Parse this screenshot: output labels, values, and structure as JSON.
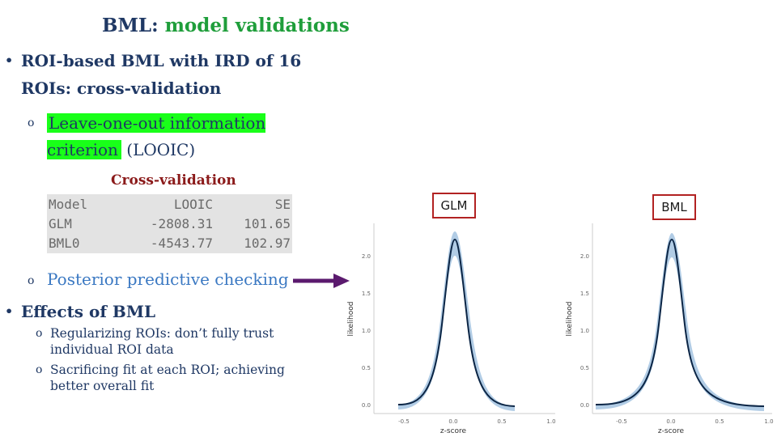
{
  "title": {
    "main": "BML:",
    "accent": "model validations"
  },
  "bullets": {
    "b1": "ROI-based BML with IRD of 16 ROIs: cross-validation",
    "looic_highlight": "Leave-one-out information criterion",
    "looic_rest": " (LOOIC)",
    "posterior": "Posterior predictive checking",
    "b2": "Effects of BML",
    "reg": "Regularizing ROIs: don’t fully trust individual ROI data",
    "sac": "Sacrificing fit at each ROI; achieving better overall fit",
    "bullet_symbol": "•",
    "sub_symbol": "o"
  },
  "table": {
    "caption": "Cross-validation",
    "headers": [
      "Model",
      "LOOIC",
      "SE"
    ],
    "rows": [
      [
        "GLM",
        "-2808.31",
        "101.65"
      ],
      [
        "BML0",
        "-4543.77",
        "102.97"
      ]
    ]
  },
  "labels": {
    "glm": "GLM",
    "bml": "BML"
  },
  "plots": {
    "ylabel": "likelihood",
    "xlabel": "z-score",
    "yticks": [
      "0.0",
      "0.5",
      "1.0",
      "1.5",
      "2.0"
    ],
    "xticks": [
      "-0.5",
      "0.0",
      "0.5",
      "1.0"
    ]
  },
  "colors": {
    "accent_green": "#1f9e3b",
    "highlight": "#19ff19",
    "arrow": "#5b1a6e",
    "box_border": "#b22222",
    "band": "#a9c6e2",
    "curve": "#0b2545"
  }
}
